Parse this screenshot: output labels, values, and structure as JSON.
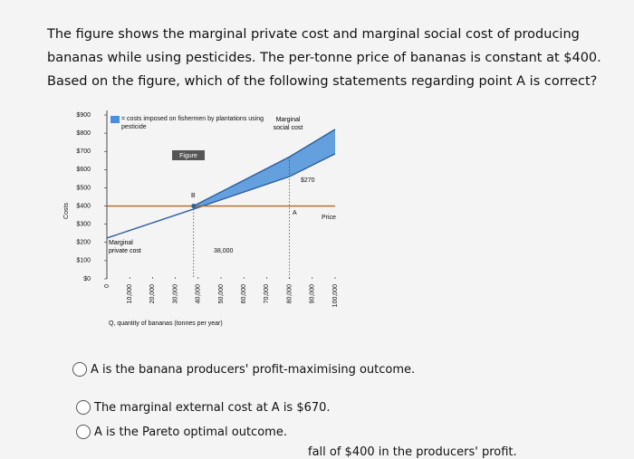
{
  "question": [
    "The figure shows the marginal private cost and marginal social cost of producing",
    "bananas while using pesticides. The per-tonne price of bananas is constant at $400.",
    "Based on the figure, which of the following statements regarding point A is correct?"
  ],
  "chart_data": {
    "type": "line",
    "x": [
      0,
      38000,
      80000,
      100000
    ],
    "series": [
      {
        "name": "Marginal private cost",
        "color": "#2d5f9e",
        "values": [
          224,
          383,
          562,
          687
        ]
      },
      {
        "name": "Marginal social cost",
        "color": "#2d5f9e",
        "values": [
          null,
          400,
          670,
          821
        ]
      },
      {
        "name": "Price",
        "color": "#b5651d",
        "values": [
          400,
          400,
          400,
          400
        ]
      }
    ],
    "shade_color": "#4a90d9",
    "legend_text": "= costs imposed on fishermen by plantations using pesticide",
    "button": "Figure",
    "annotations": [
      "B",
      "A",
      "$270",
      "38,000"
    ],
    "xlabel": "Q, quantity of bananas (tonnes per year)",
    "ylabel": "Costs",
    "xlim": [
      0,
      100000
    ],
    "ylim": [
      0,
      900
    ],
    "xticks": [
      0,
      {
        "value": 10000,
        "label": "10,000"
      },
      {
        "value": 20000,
        "label": "20,000"
      },
      {
        "value": 30000,
        "label": "30,000"
      },
      {
        "value": 40000,
        "label": "40,000"
      },
      {
        "value": 50000,
        "label": "50,000"
      },
      {
        "value": 60000,
        "label": "60,000"
      },
      {
        "value": 70000,
        "label": "70,000"
      },
      {
        "value": 80000,
        "label": "80,000"
      },
      {
        "value": 90000,
        "label": "90,000"
      },
      {
        "value": 100000,
        "label": "100,000"
      }
    ],
    "yticks": [
      {
        "value": 0,
        "label": "$0"
      },
      {
        "value": 100,
        "label": "$100"
      },
      {
        "value": 200,
        "label": "$200"
      },
      {
        "value": 300,
        "label": "$300"
      },
      {
        "value": 400,
        "label": "$400"
      },
      {
        "value": 500,
        "label": "$500"
      },
      {
        "value": 600,
        "label": "$600"
      },
      {
        "value": 700,
        "label": "$700"
      },
      {
        "value": 800,
        "label": "$800"
      },
      {
        "value": 900,
        "label": "$900"
      }
    ]
  },
  "options": [
    "A is the banana producers' profit-maximising outcome.",
    "The marginal external cost at A is $670.",
    "A is the Pareto optimal outcome.",
    "fall of $400 in the producers' profit."
  ]
}
